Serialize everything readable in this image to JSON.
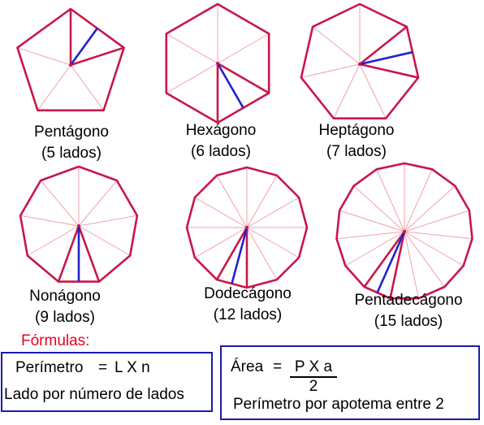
{
  "polygons": [
    {
      "name": "Pentágono",
      "sides_label": "(5 lados)",
      "n": 5
    },
    {
      "name": "Hexágono",
      "sides_label": "(6 lados)",
      "n": 6
    },
    {
      "name": "Heptágono",
      "sides_label": "(7 lados)",
      "n": 7
    },
    {
      "name": "Nonágono",
      "sides_label": "(9 lados)",
      "n": 9
    },
    {
      "name": "Dodecágono",
      "sides_label": "(12 lados)",
      "n": 12
    },
    {
      "name": "Pentadecágono",
      "sides_label": "(15 lados)",
      "n": 15
    }
  ],
  "colors": {
    "outline": "#c8174a",
    "spokes": "#f2a0ac",
    "apothem": "#2222cc",
    "title": "#e8001c",
    "box_border": "#1a1ab0"
  },
  "formulas": {
    "title": "Fórmulas:",
    "perimeter": {
      "formula_left": "Perímetro",
      "equals": "=",
      "formula_right": "L X n",
      "description": "Lado por número de lados"
    },
    "area": {
      "label": "Área",
      "equals": "=",
      "numerator": "P X a",
      "denominator": "2",
      "description": "Perímetro por apotema entre 2"
    }
  }
}
